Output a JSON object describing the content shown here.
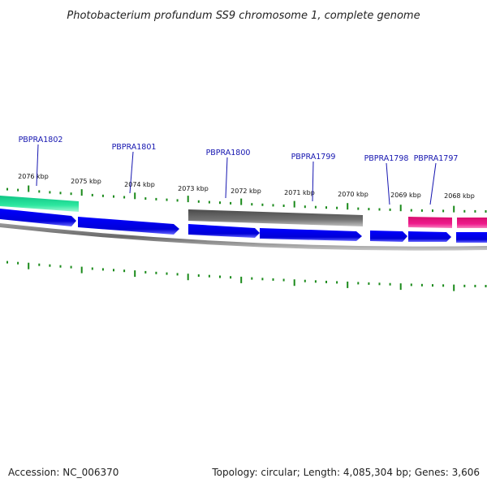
{
  "title": "Photobacterium profundum SS9 chromosome 1, complete genome",
  "footer": {
    "accession": "Accession: NC_006370",
    "summary": "Topology: circular; Length: 4,085,304 bp; Genes: 3,606"
  },
  "kbp_labels": [
    "2076 kbp",
    "2075 kbp",
    "2074 kbp",
    "2073 kbp",
    "2072 kbp",
    "2071 kbp",
    "2070 kbp",
    "2069 kbp",
    "2068 kbp"
  ],
  "gene_labels": [
    "PBPRA1802",
    "PBPRA1801",
    "PBPRA1800",
    "PBPRA1799",
    "PBPRA1798",
    "PBPRA1797"
  ],
  "colors": {
    "forward_gene": "#0000e6",
    "cds_green": "#2ee8a0",
    "cds_gray": "#6a6a6a",
    "cds_pink": "#ee1a8c",
    "tick": "#1a8a1a",
    "backbone": "#8a8a8a",
    "label_line": "#1515b0"
  }
}
